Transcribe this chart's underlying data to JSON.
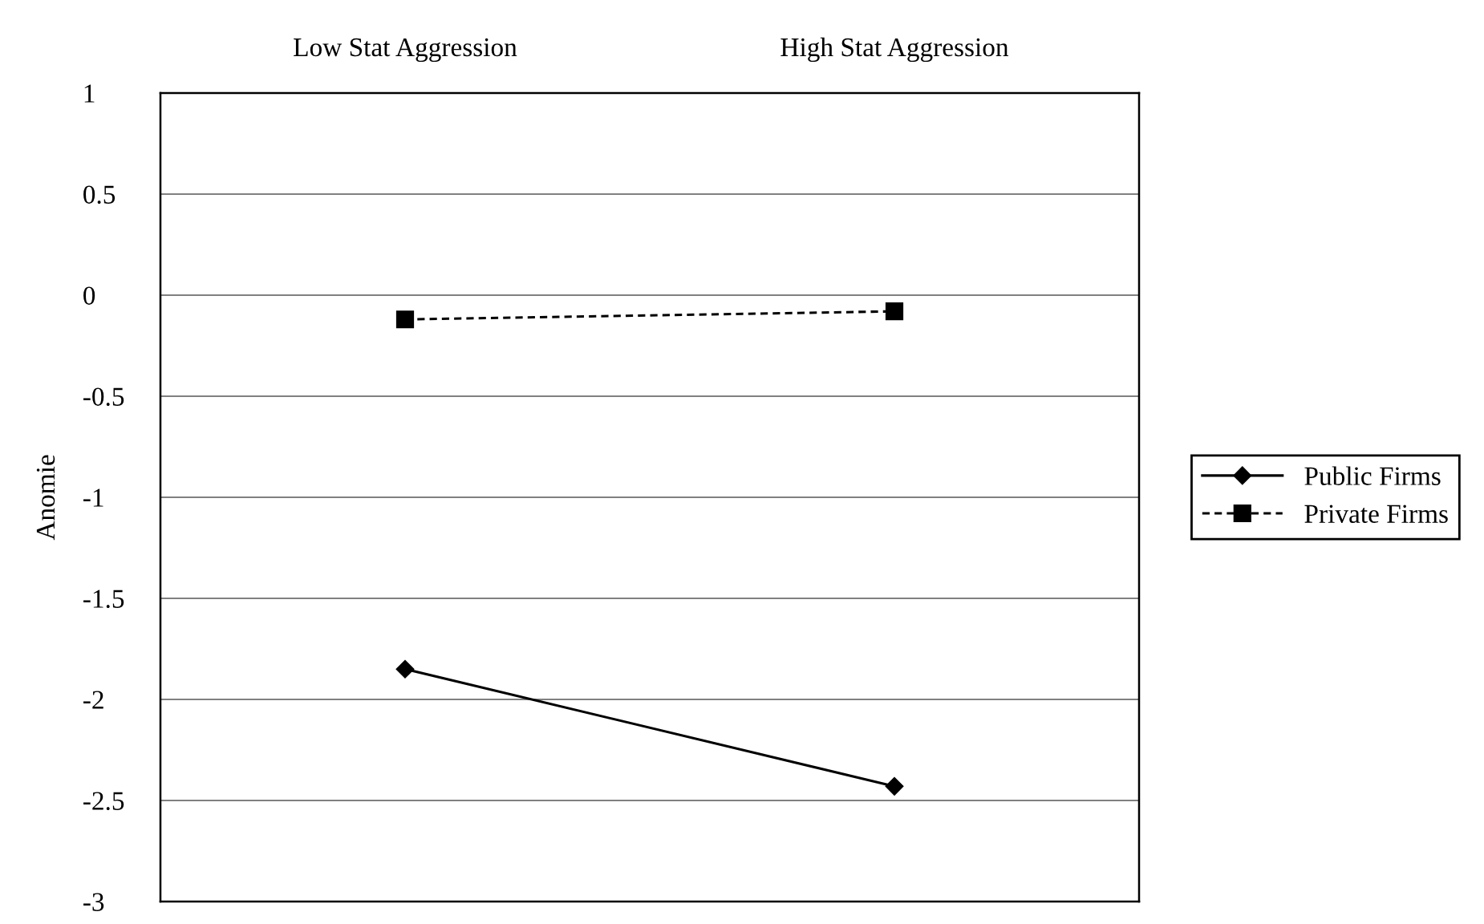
{
  "chart_data": {
    "type": "line",
    "ylabel": "Anomie",
    "categories": [
      "Low Stat Aggression",
      "High Stat Aggression"
    ],
    "series": [
      {
        "name": "Public Firms",
        "color": "#000000",
        "values": [
          -1.85,
          -2.43
        ],
        "marker": "diamond",
        "line_style": "solid"
      },
      {
        "name": "Private Firms",
        "color": "#000000",
        "values": [
          -0.12,
          -0.08
        ],
        "marker": "square",
        "line_style": "dashed"
      }
    ],
    "ylim": [
      -3,
      1
    ],
    "yticks": [
      -3,
      -2.5,
      -2,
      -1.5,
      -1,
      -0.5,
      0,
      0.5,
      1
    ],
    "grid": "y",
    "legend": "right"
  }
}
